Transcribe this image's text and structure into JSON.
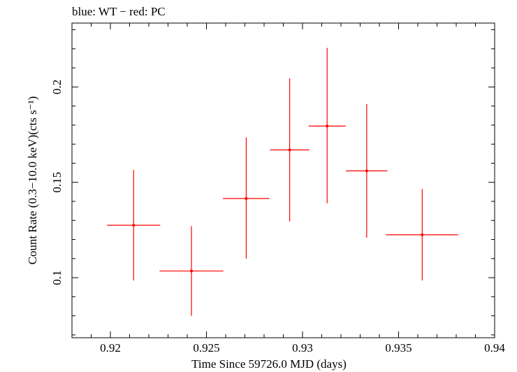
{
  "chart_data": {
    "type": "scatter",
    "title": "blue: WT − red: PC",
    "xlabel": "Time Since 59726.0 MJD (days)",
    "ylabel": "Count Rate (0.3−10.0 keV)(cts s⁻¹)",
    "xlim": [
      0.918,
      0.94
    ],
    "ylim": [
      0.0685,
      0.2335
    ],
    "x_ticks": [
      0.92,
      0.925,
      0.93,
      0.935,
      0.94
    ],
    "x_tick_labels": [
      "0.92",
      "0.925",
      "0.93",
      "0.935",
      "0.94"
    ],
    "y_ticks": [
      0.1,
      0.15,
      0.2
    ],
    "y_tick_labels": [
      "0.1",
      "0.15",
      "0.2"
    ],
    "grid": false,
    "series": [
      {
        "color": "#ff0000",
        "points": [
          {
            "x": 0.92121,
            "xerr": 0.00138,
            "y": 0.1275,
            "yerr_low": 0.029,
            "yerr_high": 0.029
          },
          {
            "x": 0.92422,
            "xerr": 0.00166,
            "y": 0.1035,
            "yerr_low": 0.0235,
            "yerr_high": 0.0235
          },
          {
            "x": 0.92707,
            "xerr": 0.00121,
            "y": 0.1415,
            "yerr_low": 0.0315,
            "yerr_high": 0.032
          },
          {
            "x": 0.92933,
            "xerr": 0.00102,
            "y": 0.167,
            "yerr_low": 0.0375,
            "yerr_high": 0.0375
          },
          {
            "x": 0.93128,
            "xerr": 0.00097,
            "y": 0.1795,
            "yerr_low": 0.0405,
            "yerr_high": 0.041
          },
          {
            "x": 0.93334,
            "xerr": 0.00108,
            "y": 0.156,
            "yerr_low": 0.035,
            "yerr_high": 0.035
          },
          {
            "x": 0.93623,
            "xerr": 0.00188,
            "y": 0.1225,
            "yerr_low": 0.024,
            "yerr_high": 0.024
          }
        ]
      }
    ]
  }
}
